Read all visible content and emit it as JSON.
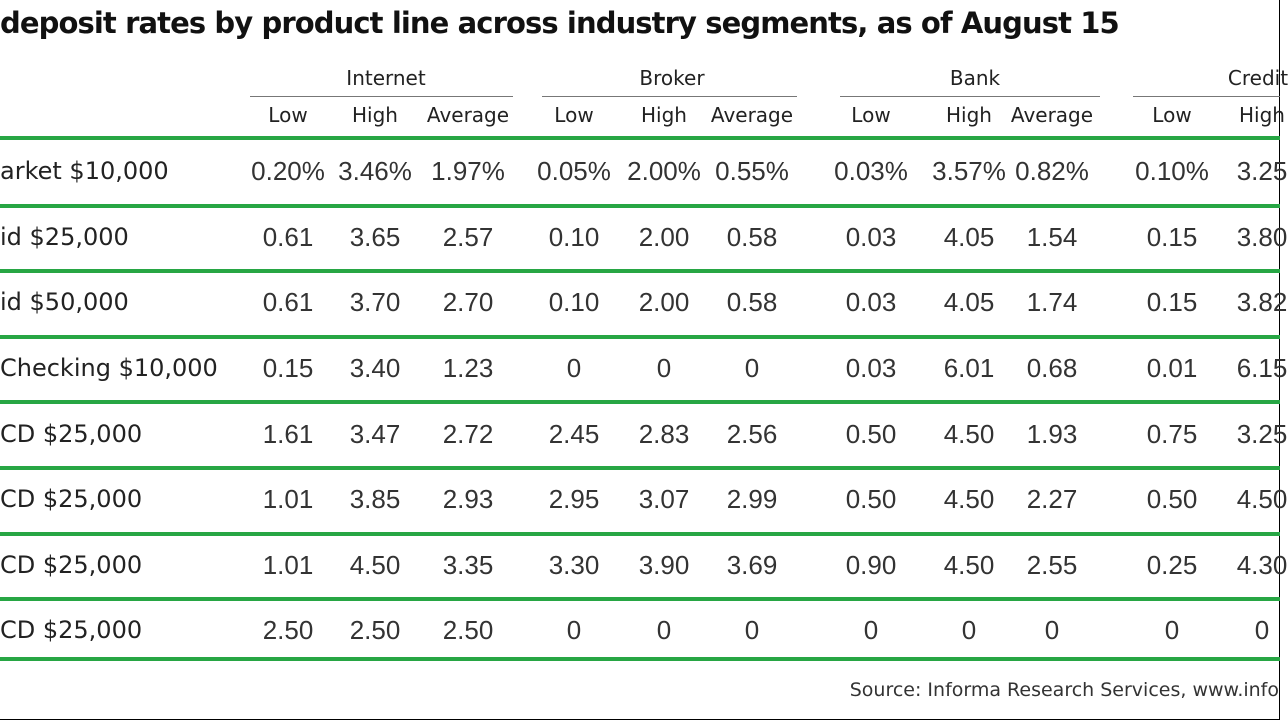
{
  "chart_data": {
    "type": "table",
    "title": "deposit rates by product line across industry segments, as of August 15",
    "groups": [
      "Internet",
      "Broker",
      "Bank",
      "Credit"
    ],
    "group_columns": [
      [
        "Low",
        "High",
        "Average"
      ],
      [
        "Low",
        "High",
        "Average"
      ],
      [
        "Low",
        "High",
        "Average"
      ],
      [
        "Low",
        "High"
      ]
    ],
    "rows": [
      {
        "label": "arket $10,000",
        "cells": [
          [
            "0.20%",
            "3.46%",
            "1.97%"
          ],
          [
            "0.05%",
            "2.00%",
            "0.55%"
          ],
          [
            "0.03%",
            "3.57%",
            "0.82%"
          ],
          [
            "0.10%",
            "3.25"
          ]
        ]
      },
      {
        "label": "id $25,000",
        "cells": [
          [
            "0.61",
            "3.65",
            "2.57"
          ],
          [
            "0.10",
            "2.00",
            "0.58"
          ],
          [
            "0.03",
            "4.05",
            "1.54"
          ],
          [
            "0.15",
            "3.80"
          ]
        ]
      },
      {
        "label": "id $50,000",
        "cells": [
          [
            "0.61",
            "3.70",
            "2.70"
          ],
          [
            "0.10",
            "2.00",
            "0.58"
          ],
          [
            "0.03",
            "4.05",
            "1.74"
          ],
          [
            "0.15",
            "3.82"
          ]
        ]
      },
      {
        "label": "Checking $10,000",
        "cells": [
          [
            "0.15",
            "3.40",
            "1.23"
          ],
          [
            "0",
            "0",
            "0"
          ],
          [
            "0.03",
            "6.01",
            "0.68"
          ],
          [
            "0.01",
            "6.15"
          ]
        ]
      },
      {
        "label": "CD $25,000",
        "cells": [
          [
            "1.61",
            "3.47",
            "2.72"
          ],
          [
            "2.45",
            "2.83",
            "2.56"
          ],
          [
            "0.50",
            "4.50",
            "1.93"
          ],
          [
            "0.75",
            "3.25"
          ]
        ]
      },
      {
        "label": "CD $25,000",
        "cells": [
          [
            "1.01",
            "3.85",
            "2.93"
          ],
          [
            "2.95",
            "3.07",
            "2.99"
          ],
          [
            "0.50",
            "4.50",
            "2.27"
          ],
          [
            "0.50",
            "4.50"
          ]
        ]
      },
      {
        "label": "CD $25,000",
        "cells": [
          [
            "1.01",
            "4.50",
            "3.35"
          ],
          [
            "3.30",
            "3.90",
            "3.69"
          ],
          [
            "0.90",
            "4.50",
            "2.55"
          ],
          [
            "0.25",
            "4.30"
          ]
        ]
      },
      {
        "label": "CD $25,000",
        "cells": [
          [
            "2.50",
            "2.50",
            "2.50"
          ],
          [
            "0",
            "0",
            "0"
          ],
          [
            "0",
            "0",
            "0"
          ],
          [
            "0",
            "0"
          ]
        ]
      }
    ],
    "source": "Source: Informa Research Services, www.info",
    "colors": {
      "rule": "#27a644",
      "text": "#222222"
    }
  }
}
